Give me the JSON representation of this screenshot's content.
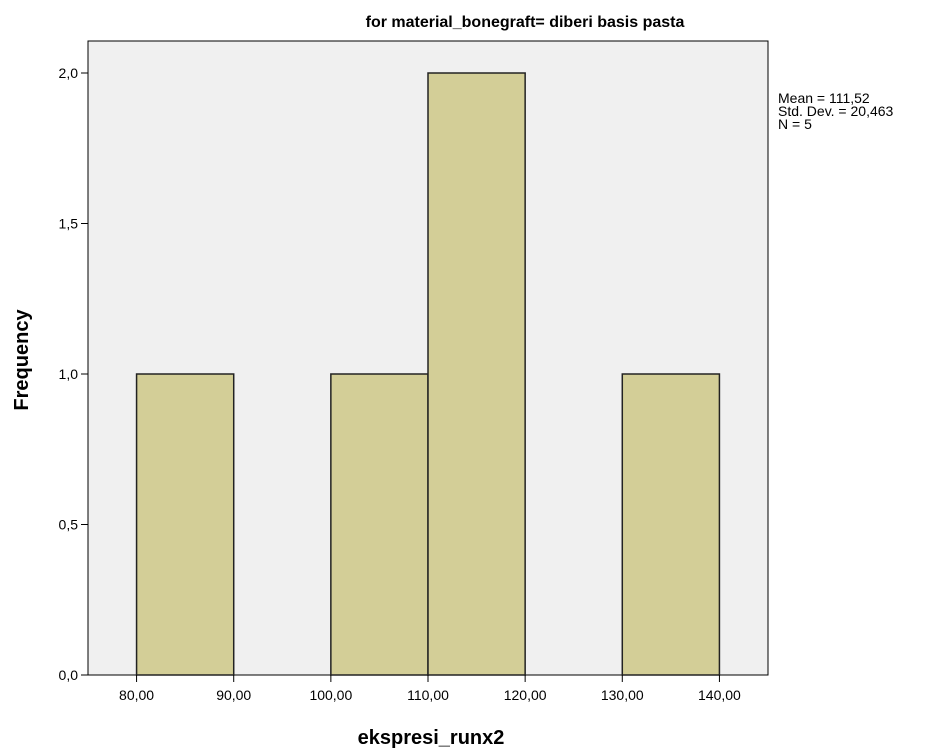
{
  "chart_data": {
    "type": "bar",
    "title": "for material_bonegraft= diberi basis pasta",
    "xlabel": "ekspresi_runx2",
    "ylabel": "Frequency",
    "bins": [
      {
        "start": 80,
        "end": 90,
        "count": 1
      },
      {
        "start": 90,
        "end": 100,
        "count": 0
      },
      {
        "start": 100,
        "end": 110,
        "count": 1
      },
      {
        "start": 110,
        "end": 120,
        "count": 2
      },
      {
        "start": 120,
        "end": 130,
        "count": 0
      },
      {
        "start": 130,
        "end": 140,
        "count": 1
      }
    ],
    "xlim": [
      75,
      145
    ],
    "ylim": [
      0,
      2.0
    ],
    "x_ticks": [
      {
        "value": 80,
        "label": "80,00"
      },
      {
        "value": 90,
        "label": "90,00"
      },
      {
        "value": 100,
        "label": "100,00"
      },
      {
        "value": 110,
        "label": "110,00"
      },
      {
        "value": 120,
        "label": "120,00"
      },
      {
        "value": 130,
        "label": "130,00"
      },
      {
        "value": 140,
        "label": "140,00"
      }
    ],
    "y_ticks": [
      {
        "value": 0.0,
        "label": "0,0"
      },
      {
        "value": 0.5,
        "label": "0,5"
      },
      {
        "value": 1.0,
        "label": "1,0"
      },
      {
        "value": 1.5,
        "label": "1,5"
      },
      {
        "value": 2.0,
        "label": "2,0"
      }
    ],
    "stats": {
      "mean": "Mean = 111,52",
      "std_dev": "Std. Dev. = 20,463",
      "n": "N = 5"
    },
    "grid": false,
    "legend_position": "right",
    "colors": {
      "plot_background": "#f0f0f0",
      "bar_fill": "#d3ce97",
      "bar_stroke": "#222222",
      "frame": "#000000"
    }
  }
}
